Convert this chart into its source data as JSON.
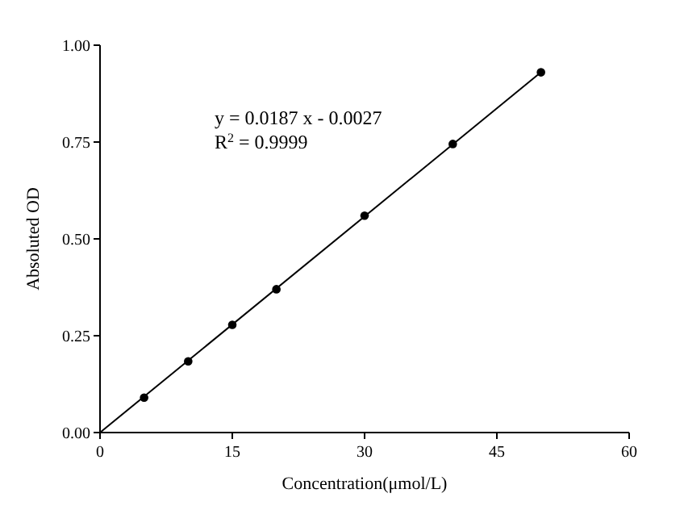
{
  "chart_data": {
    "type": "scatter",
    "xlabel": "Concentration(μmol/L)",
    "ylabel": "Absoluted OD",
    "xlim": [
      0,
      60
    ],
    "ylim": [
      0,
      1
    ],
    "xticks": [
      0,
      15,
      30,
      45,
      60
    ],
    "yticks": [
      {
        "value": 0,
        "label": "0.00"
      },
      {
        "value": 0.25,
        "label": "0.25"
      },
      {
        "value": 0.5,
        "label": "0.50"
      },
      {
        "value": 0.75,
        "label": "0.75"
      },
      {
        "value": 1,
        "label": "1.00"
      }
    ],
    "grid": false,
    "annotations": [
      "y = 0.0187 x - 0.0027",
      "R$^{2}$ = 0.9999"
    ],
    "series": [
      {
        "marker": "circle",
        "color": "#000000",
        "x": [
          5,
          10,
          15,
          20,
          30,
          40,
          50
        ],
        "values": [
          0.09,
          0.184,
          0.278,
          0.37,
          0.56,
          0.745,
          0.93
        ]
      },
      {
        "type": "line",
        "color": "#000000",
        "x": [
          0,
          50
        ],
        "values": [
          0,
          0.93
        ]
      }
    ]
  }
}
